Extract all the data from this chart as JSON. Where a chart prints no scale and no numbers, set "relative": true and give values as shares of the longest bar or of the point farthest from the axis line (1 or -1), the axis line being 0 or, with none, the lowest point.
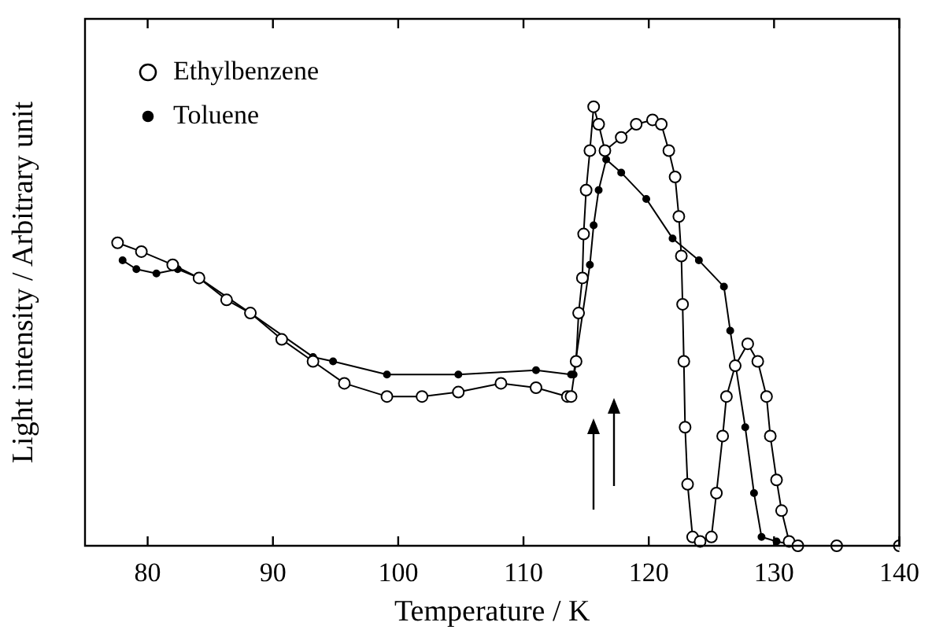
{
  "chart_data": {
    "type": "line",
    "xlabel": "Temperature / K",
    "ylabel": "Light intensity / Arbitrary unit",
    "relative": true,
    "xlim": [
      75,
      140
    ],
    "xticks": [
      80,
      90,
      100,
      110,
      120,
      130,
      140
    ],
    "legend": "top left",
    "marker": "circle",
    "grid": false,
    "series": [
      {
        "name": "Ethylbenzene",
        "color": "#000000",
        "x": [
          77.6,
          79.5,
          82.0,
          84.1,
          86.3,
          88.2,
          90.7,
          93.2,
          95.7,
          99.1,
          101.9,
          104.8,
          108.2,
          111.0,
          113.5,
          113.8,
          114.2,
          114.4,
          114.7,
          114.8,
          115.0,
          115.3,
          115.6,
          116.0,
          116.5,
          117.8,
          119.0,
          120.3,
          121.0,
          121.6,
          122.1,
          122.4,
          122.6,
          122.7,
          122.8,
          122.9,
          123.1,
          123.5,
          124.1,
          125.0,
          125.4,
          125.9,
          126.2,
          126.9,
          127.9,
          128.7,
          129.4,
          129.7,
          130.2,
          130.6,
          131.2,
          131.9,
          135.0,
          140.0
        ],
        "values": [
          0.69,
          0.67,
          0.64,
          0.61,
          0.56,
          0.53,
          0.47,
          0.42,
          0.37,
          0.34,
          0.34,
          0.35,
          0.37,
          0.36,
          0.34,
          0.34,
          0.42,
          0.53,
          0.61,
          0.71,
          0.81,
          0.9,
          1.0,
          0.96,
          0.9,
          0.93,
          0.96,
          0.97,
          0.96,
          0.9,
          0.84,
          0.75,
          0.66,
          0.55,
          0.42,
          0.27,
          0.14,
          0.02,
          0.01,
          0.02,
          0.12,
          0.25,
          0.34,
          0.41,
          0.46,
          0.42,
          0.34,
          0.25,
          0.15,
          0.08,
          0.01,
          0,
          0,
          0
        ]
      },
      {
        "name": "Toluene",
        "color": "#000000",
        "x": [
          78.0,
          79.1,
          80.7,
          82.4,
          84.1,
          88.2,
          93.2,
          94.8,
          99.1,
          104.8,
          111.0,
          113.8,
          114.0,
          115.3,
          115.6,
          116.0,
          116.6,
          117.8,
          119.8,
          121.9,
          124.0,
          126.0,
          126.5,
          127.7,
          128.4,
          129.0,
          130.2,
          131.9,
          135.0,
          140.0
        ],
        "values": [
          0.65,
          0.63,
          0.62,
          0.63,
          0.61,
          0.53,
          0.43,
          0.42,
          0.39,
          0.39,
          0.4,
          0.39,
          0.39,
          0.64,
          0.73,
          0.81,
          0.88,
          0.85,
          0.79,
          0.7,
          0.65,
          0.59,
          0.49,
          0.27,
          0.12,
          0.02,
          0.01,
          0,
          0,
          0
        ]
      }
    ]
  }
}
